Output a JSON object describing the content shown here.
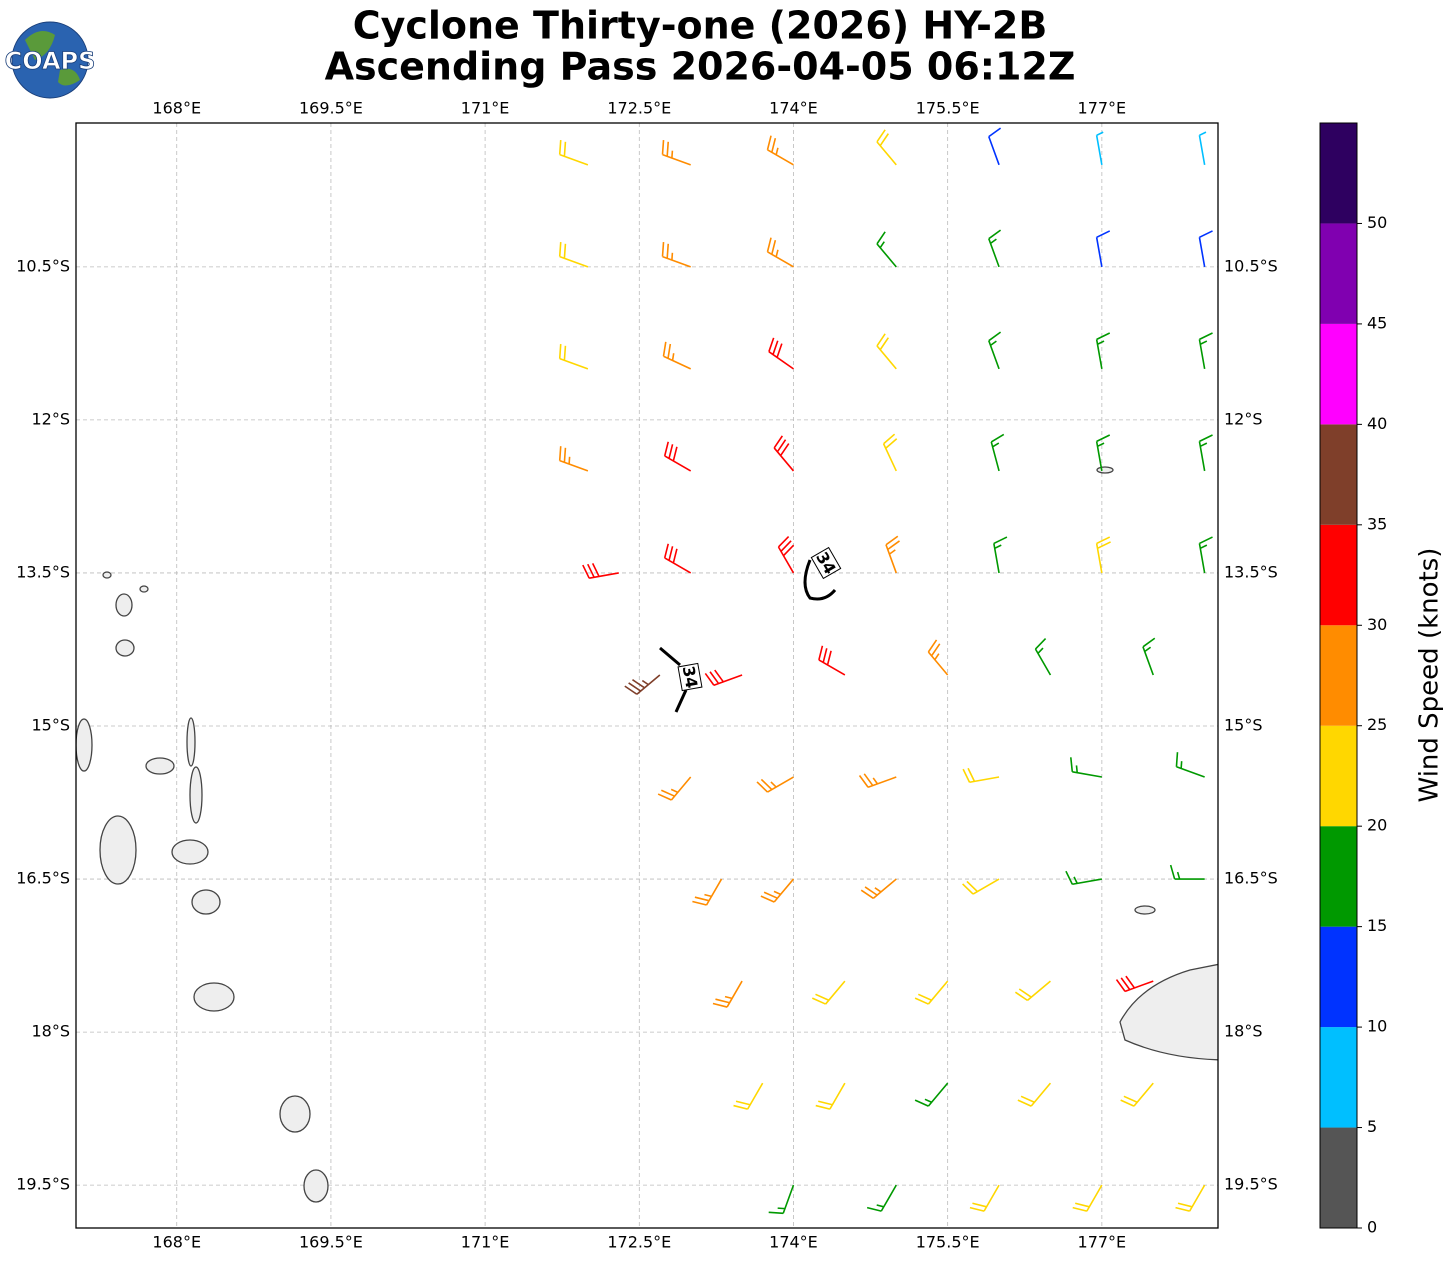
{
  "logo_text": "COAPS",
  "chart_data": {
    "type": "wind-barbs",
    "title": [
      "Cyclone Thirty-one (2026) HY-2B",
      "Ascending Pass 2026-04-05 06:12Z"
    ],
    "xlim": [
      167.02,
      178.13
    ],
    "ylim": [
      -19.92,
      -9.09
    ],
    "xticks": [
      {
        "value": 168,
        "label": "168°E"
      },
      {
        "value": 169.5,
        "label": "169.5°E"
      },
      {
        "value": 171,
        "label": "171°E"
      },
      {
        "value": 172.5,
        "label": "172.5°E"
      },
      {
        "value": 174,
        "label": "174°E"
      },
      {
        "value": 175.5,
        "label": "175.5°E"
      },
      {
        "value": 177,
        "label": "177°E"
      }
    ],
    "yticks": [
      {
        "value": -10.5,
        "label": "10.5°S"
      },
      {
        "value": -12,
        "label": "12°S"
      },
      {
        "value": -13.5,
        "label": "13.5°S"
      },
      {
        "value": -15,
        "label": "15°S"
      },
      {
        "value": -16.5,
        "label": "16.5°S"
      },
      {
        "value": -18,
        "label": "18°S"
      },
      {
        "value": -19.5,
        "label": "19.5°S"
      }
    ],
    "grid": true,
    "barbs": {
      "lon": [
        172,
        173,
        174,
        175,
        176,
        177,
        178,
        172,
        173,
        174,
        175,
        176,
        177,
        178,
        172,
        173,
        174,
        175,
        176,
        177,
        178,
        172,
        173,
        174,
        175,
        176,
        177,
        178,
        172.3,
        173,
        174,
        175,
        176,
        177,
        178,
        172.7,
        173.5,
        174.5,
        175.5,
        176.5,
        177.5,
        173,
        174,
        175,
        176,
        177,
        178,
        173.3,
        174,
        175,
        176,
        177,
        178,
        173.5,
        174.5,
        175.5,
        176.5,
        177.5,
        173.7,
        174.5,
        175.5,
        176.5,
        177.5,
        174,
        175,
        176,
        177,
        178
      ],
      "lat": [
        -9.5,
        -9.5,
        -9.5,
        -9.5,
        -9.5,
        -9.5,
        -9.5,
        -10.5,
        -10.5,
        -10.5,
        -10.5,
        -10.5,
        -10.5,
        -10.5,
        -11.5,
        -11.5,
        -11.5,
        -11.5,
        -11.5,
        -11.5,
        -11.5,
        -12.5,
        -12.5,
        -12.5,
        -12.5,
        -12.5,
        -12.5,
        -12.5,
        -13.5,
        -13.5,
        -13.5,
        -13.5,
        -13.5,
        -13.5,
        -13.5,
        -14.5,
        -14.5,
        -14.5,
        -14.5,
        -14.5,
        -14.5,
        -15.5,
        -15.5,
        -15.5,
        -15.5,
        -15.5,
        -15.5,
        -16.5,
        -16.5,
        -16.5,
        -16.5,
        -16.5,
        -16.5,
        -17.5,
        -17.5,
        -17.5,
        -17.5,
        -17.5,
        -18.5,
        -18.5,
        -18.5,
        -18.5,
        -18.5,
        -19.5,
        -19.5,
        -19.5,
        -19.5,
        -19.5
      ],
      "speed": [
        22,
        27,
        27,
        20,
        12,
        8,
        8,
        22,
        25,
        27,
        18,
        15,
        12,
        13,
        22,
        27,
        32,
        22,
        18,
        15,
        15,
        27,
        30,
        33,
        23,
        18,
        18,
        18,
        33,
        30,
        33,
        25,
        18,
        23,
        15,
        37,
        33,
        30,
        25,
        18,
        18,
        28,
        27,
        25,
        23,
        18,
        18,
        28,
        27,
        27,
        23,
        18,
        18,
        27,
        23,
        22,
        23,
        32,
        23,
        22,
        18,
        23,
        22,
        18,
        18,
        22,
        23,
        23
      ],
      "dir": [
        290,
        290,
        300,
        320,
        340,
        350,
        350,
        290,
        290,
        300,
        320,
        340,
        350,
        350,
        290,
        295,
        305,
        320,
        340,
        350,
        350,
        290,
        300,
        320,
        335,
        345,
        350,
        350,
        260,
        300,
        330,
        340,
        350,
        350,
        350,
        230,
        250,
        300,
        320,
        330,
        340,
        220,
        240,
        250,
        260,
        280,
        290,
        210,
        220,
        230,
        240,
        260,
        270,
        210,
        220,
        220,
        230,
        250,
        210,
        210,
        220,
        220,
        220,
        200,
        210,
        210,
        210,
        210
      ]
    },
    "contours": [
      {
        "level": 34
      },
      {
        "level": 34
      }
    ],
    "colorbar": {
      "label": "Wind Speed (knots)",
      "bounds": [
        0,
        5,
        10,
        15,
        20,
        25,
        30,
        35,
        40,
        45,
        50,
        55
      ],
      "colors": [
        "#555555",
        "#00bfff",
        "#0033ff",
        "#009900",
        "#ffd700",
        "#ff8c00",
        "#ff0000",
        "#7f3f2a",
        "#ff00ff",
        "#8000b0",
        "#2e0060"
      ],
      "ticks": [
        0,
        5,
        10,
        15,
        20,
        25,
        30,
        35,
        40,
        45,
        50
      ]
    }
  }
}
